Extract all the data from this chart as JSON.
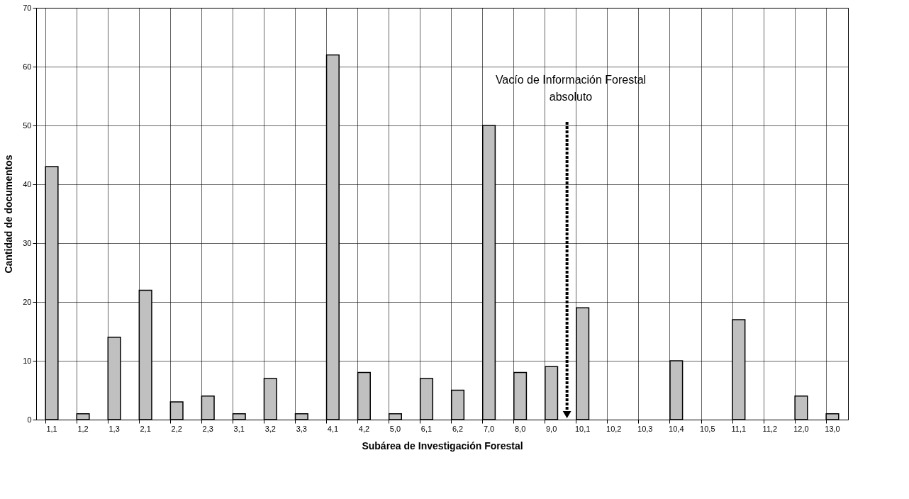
{
  "chart_data": {
    "type": "bar",
    "xlabel": "Subárea de Investigación Forestal",
    "ylabel": "Cantidad de documentos",
    "categories": [
      "1,1",
      "1,2",
      "1,3",
      "2,1",
      "2,2",
      "2,3",
      "3,1",
      "3,2",
      "3,3",
      "4,1",
      "4,2",
      "5,0",
      "6,1",
      "6,2",
      "7,0",
      "8,0",
      "9,0",
      "10,1",
      "10,2",
      "10,3",
      "10,4",
      "10,5",
      "11,1",
      "11,2",
      "12,0",
      "13,0"
    ],
    "values": [
      43,
      1,
      14,
      22,
      3,
      4,
      1,
      7,
      1,
      62,
      8,
      1,
      7,
      5,
      50,
      8,
      9,
      19,
      0,
      0,
      10,
      0,
      17,
      0,
      4,
      1
    ],
    "color": "#c0c0c0",
    "ylim": [
      0,
      70
    ],
    "yticks": [
      0,
      10,
      20,
      30,
      40,
      50,
      60,
      70
    ],
    "grid": true,
    "annotations": [
      "Vacío de Información Forestal\nabsoluto"
    ]
  }
}
